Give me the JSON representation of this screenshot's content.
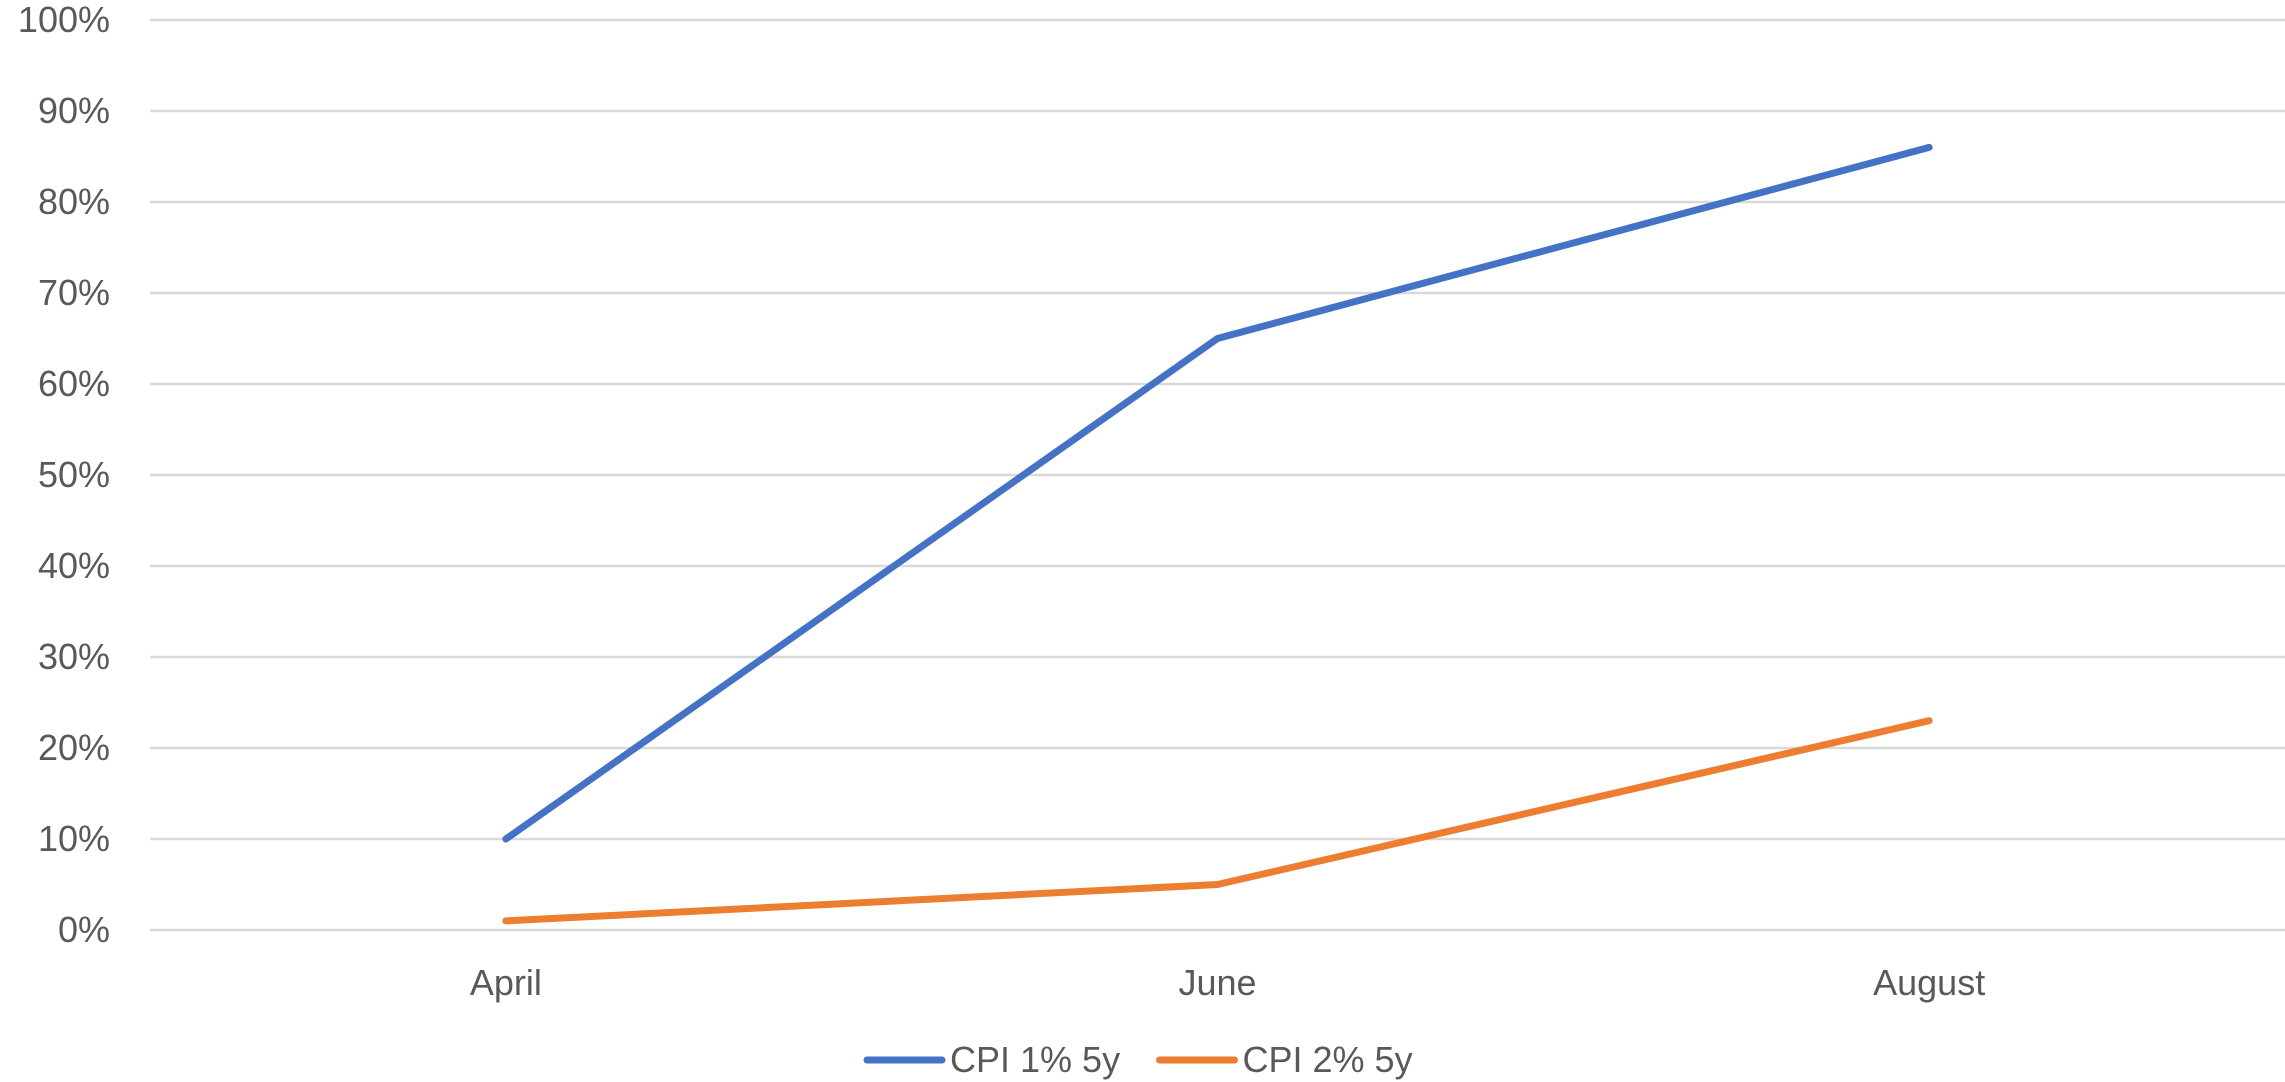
{
  "chart_data": {
    "type": "line",
    "categories": [
      "April",
      "June",
      "August"
    ],
    "series": [
      {
        "name": "CPI 1% 5y",
        "values": [
          0.1,
          0.65,
          0.86
        ],
        "color": "#4472c4"
      },
      {
        "name": "CPI 2% 5y",
        "values": [
          0.01,
          0.05,
          0.23
        ],
        "color": "#ed7d31"
      }
    ],
    "yticks": [
      "0%",
      "10%",
      "20%",
      "30%",
      "40%",
      "50%",
      "60%",
      "70%",
      "80%",
      "90%",
      "100%"
    ],
    "ylim": [
      0,
      1
    ],
    "grid": true,
    "legend_position": "bottom"
  }
}
